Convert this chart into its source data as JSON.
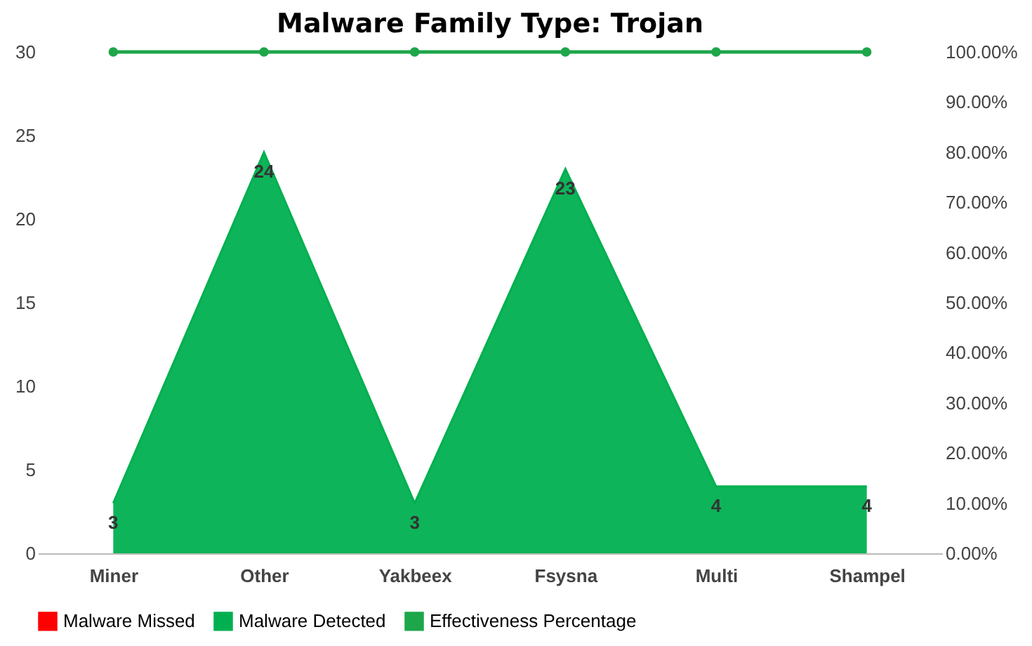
{
  "chart_data": {
    "type": "area",
    "title": "Malware  Family Type: Trojan",
    "categories": [
      "Miner",
      "Other",
      "Yakbeex",
      "Fsysna",
      "Multi",
      "Shampel"
    ],
    "ylim": [
      0,
      30
    ],
    "yticks": [
      0,
      5,
      10,
      15,
      20,
      25,
      30
    ],
    "y2lim": [
      0,
      100
    ],
    "y2ticks": [
      {
        "value": 0,
        "label": "0.00%"
      },
      {
        "value": 10,
        "label": "10.00%"
      },
      {
        "value": 20,
        "label": "20.00%"
      },
      {
        "value": 30,
        "label": "30.00%"
      },
      {
        "value": 40,
        "label": "40.00%"
      },
      {
        "value": 50,
        "label": "50.00%"
      },
      {
        "value": 60,
        "label": "60.00%"
      },
      {
        "value": 70,
        "label": "70.00%"
      },
      {
        "value": 80,
        "label": "80.00%"
      },
      {
        "value": 90,
        "label": "90.00%"
      },
      {
        "value": 100,
        "label": "100.00%"
      }
    ],
    "legend": "bottom",
    "grid": false,
    "series": [
      {
        "name": "Malware Missed",
        "color": "#ff0000",
        "values": [
          null,
          null,
          null,
          null,
          null,
          null
        ]
      },
      {
        "name": "Malware Detected",
        "color": "#00b050",
        "values": [
          3,
          24,
          3,
          23,
          4,
          4
        ],
        "value_labels": [
          "3",
          "24",
          "3",
          "23",
          "4",
          "4"
        ]
      },
      {
        "name": "Effectiveness Percentage",
        "type": "line",
        "axis": "y2",
        "color": "#1ea64b",
        "marker": "circle",
        "line_style": "solid",
        "values": [
          100,
          100,
          100,
          100,
          100,
          100
        ]
      }
    ]
  }
}
